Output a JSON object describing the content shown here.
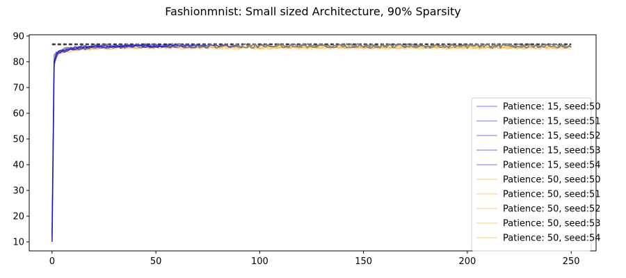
{
  "chart_data": {
    "type": "line",
    "title": "Fashionmnist: Small sized Architecture, 90% Sparsity",
    "xlabel": "",
    "ylabel": "",
    "xlim": [
      -11,
      262
    ],
    "ylim": [
      6.5,
      90.5
    ],
    "xticks": [
      0,
      50,
      100,
      150,
      200,
      250
    ],
    "yticks": [
      10,
      20,
      30,
      40,
      50,
      60,
      70,
      80,
      90
    ],
    "grid": false,
    "legend_position": "center-right",
    "colors": {
      "patience15": "#0000ff",
      "patience50": "#ffa500",
      "gray_runs": "#808080",
      "dashed_ref": "#555555"
    },
    "x_end": 250,
    "reference_lines": [
      {
        "y": 86.6,
        "style": "dashed",
        "color": "#555555"
      },
      {
        "y": 86.9,
        "style": "dashed",
        "color": "#333333"
      }
    ],
    "series": [
      {
        "name": "Patience: 15, seed:50",
        "group": "p15",
        "stop_epoch": 60,
        "final": 86.3,
        "start": 10,
        "offset": 0.0
      },
      {
        "name": "Patience: 15, seed:51",
        "group": "p15",
        "stop_epoch": 75,
        "final": 86.0,
        "start": 12,
        "offset": 0.3
      },
      {
        "name": "Patience: 15, seed:52",
        "group": "p15",
        "stop_epoch": 55,
        "final": 86.1,
        "start": 11,
        "offset": -0.2
      },
      {
        "name": "Patience: 15, seed:53",
        "group": "p15",
        "stop_epoch": 90,
        "final": 86.2,
        "start": 13,
        "offset": 0.1
      },
      {
        "name": "Patience: 15, seed:54",
        "group": "p15",
        "stop_epoch": 70,
        "final": 85.9,
        "start": 10,
        "offset": -0.1
      },
      {
        "name": "Patience: 50, seed:50",
        "group": "p50",
        "stop_epoch": 250,
        "final": 85.7,
        "start": 11,
        "offset": 0.0
      },
      {
        "name": "Patience: 50, seed:51",
        "group": "p50",
        "stop_epoch": 250,
        "final": 85.5,
        "start": 12,
        "offset": 0.2
      },
      {
        "name": "Patience: 50, seed:52",
        "group": "p50",
        "stop_epoch": 250,
        "final": 85.6,
        "start": 10,
        "offset": -0.2
      },
      {
        "name": "Patience: 50, seed:53",
        "group": "p50",
        "stop_epoch": 250,
        "final": 85.8,
        "start": 13,
        "offset": 0.1
      },
      {
        "name": "Patience: 50, seed:54",
        "group": "p50",
        "stop_epoch": 250,
        "final": 85.4,
        "start": 11,
        "offset": -0.1
      }
    ],
    "unlabeled_gray_runs": [
      {
        "stop_epoch": 250,
        "final": 86.1,
        "start": 10
      },
      {
        "stop_epoch": 250,
        "final": 86.3,
        "start": 12
      }
    ]
  }
}
